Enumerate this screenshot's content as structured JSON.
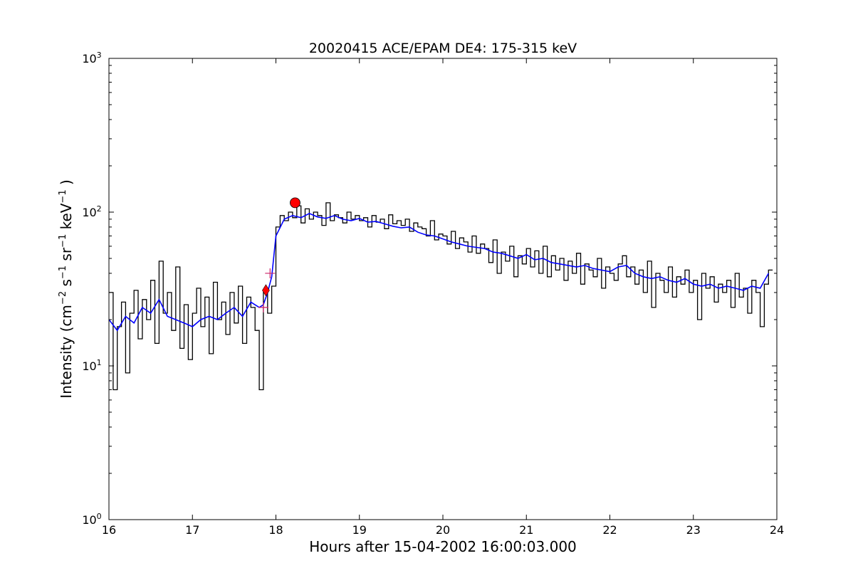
{
  "chart_data": {
    "type": "line",
    "title": "20020415 ACE/EPAM DE4: 175-315 keV",
    "xlabel": "Hours after 15-04-2002 16:00:03.000",
    "ylabel": {
      "prefix": "Intensity (cm",
      "sup1": "−2",
      "s": " s",
      "sup2": "−1",
      "sr": " sr",
      "sup3": "−1",
      "kev": " keV",
      "sup4": "−1",
      "suffix": " )"
    },
    "yscale": "log",
    "xlim": [
      16,
      24
    ],
    "ylim": [
      1,
      1000
    ],
    "x_ticks": [
      {
        "value": 16,
        "label": "16"
      },
      {
        "value": 17,
        "label": "17"
      },
      {
        "value": 18,
        "label": "18"
      },
      {
        "value": 19,
        "label": "19"
      },
      {
        "value": 20,
        "label": "20"
      },
      {
        "value": 21,
        "label": "21"
      },
      {
        "value": 22,
        "label": "22"
      },
      {
        "value": 23,
        "label": "23"
      },
      {
        "value": 24,
        "label": "24"
      }
    ],
    "y_ticks": [
      {
        "value": 1,
        "base": "10",
        "exp": "0"
      },
      {
        "value": 10,
        "base": "10",
        "exp": "1"
      },
      {
        "value": 100,
        "base": "10",
        "exp": "2"
      },
      {
        "value": 1000,
        "base": "10",
        "exp": "3"
      }
    ],
    "grid": false,
    "series": [
      {
        "style": "steps",
        "color": "#000000",
        "x": [
          16.0,
          16.05,
          16.1,
          16.15,
          16.2,
          16.25,
          16.3,
          16.35,
          16.4,
          16.45,
          16.5,
          16.55,
          16.6,
          16.65,
          16.7,
          16.75,
          16.8,
          16.85,
          16.9,
          16.95,
          17.0,
          17.05,
          17.1,
          17.15,
          17.2,
          17.25,
          17.3,
          17.35,
          17.4,
          17.45,
          17.5,
          17.55,
          17.6,
          17.65,
          17.7,
          17.75,
          17.8,
          17.85,
          17.9,
          17.95,
          18.0,
          18.05,
          18.1,
          18.15,
          18.2,
          18.25,
          18.3,
          18.35,
          18.4,
          18.45,
          18.5,
          18.55,
          18.6,
          18.65,
          18.7,
          18.75,
          18.8,
          18.85,
          18.9,
          18.95,
          19.0,
          19.05,
          19.1,
          19.15,
          19.2,
          19.25,
          19.3,
          19.35,
          19.4,
          19.45,
          19.5,
          19.55,
          19.6,
          19.65,
          19.7,
          19.75,
          19.8,
          19.85,
          19.9,
          19.95,
          20.0,
          20.05,
          20.1,
          20.15,
          20.2,
          20.25,
          20.3,
          20.35,
          20.4,
          20.45,
          20.5,
          20.55,
          20.6,
          20.65,
          20.7,
          20.75,
          20.8,
          20.85,
          20.9,
          20.95,
          21.0,
          21.05,
          21.1,
          21.15,
          21.2,
          21.25,
          21.3,
          21.35,
          21.4,
          21.45,
          21.5,
          21.55,
          21.6,
          21.65,
          21.7,
          21.75,
          21.8,
          21.85,
          21.9,
          21.95,
          22.0,
          22.05,
          22.1,
          22.15,
          22.2,
          22.25,
          22.3,
          22.35,
          22.4,
          22.45,
          22.5,
          22.55,
          22.6,
          22.65,
          22.7,
          22.75,
          22.8,
          22.85,
          22.9,
          22.95,
          23.0,
          23.05,
          23.1,
          23.15,
          23.2,
          23.25,
          23.3,
          23.35,
          23.4,
          23.45,
          23.5,
          23.55,
          23.6,
          23.65,
          23.7,
          23.75,
          23.8,
          23.85,
          23.9
        ],
        "values": [
          30,
          7,
          18,
          26,
          9,
          22,
          31,
          15,
          27,
          20,
          36,
          14,
          48,
          22,
          30,
          17,
          44,
          13,
          25,
          11,
          22,
          32,
          18,
          28,
          12,
          35,
          20,
          26,
          16,
          30,
          19,
          33,
          14,
          28,
          24,
          17,
          7,
          30,
          22,
          33,
          80,
          95,
          88,
          100,
          92,
          110,
          85,
          105,
          90,
          100,
          95,
          82,
          115,
          88,
          96,
          92,
          85,
          100,
          90,
          95,
          88,
          92,
          80,
          95,
          86,
          90,
          78,
          96,
          84,
          88,
          82,
          90,
          75,
          85,
          80,
          78,
          70,
          88,
          66,
          72,
          70,
          62,
          75,
          58,
          68,
          64,
          55,
          70,
          54,
          62,
          58,
          47,
          66,
          40,
          55,
          48,
          60,
          38,
          52,
          46,
          58,
          44,
          56,
          40,
          60,
          38,
          52,
          42,
          50,
          36,
          48,
          40,
          54,
          34,
          46,
          42,
          38,
          50,
          32,
          44,
          40,
          36,
          46,
          52,
          38,
          44,
          34,
          42,
          30,
          48,
          24,
          40,
          36,
          30,
          44,
          28,
          38,
          34,
          42,
          30,
          36,
          20,
          40,
          32,
          38,
          26,
          34,
          30,
          36,
          24,
          40,
          28,
          32,
          22,
          36,
          30,
          18,
          34,
          42
        ]
      },
      {
        "style": "line",
        "color": "#0000ff",
        "x": [
          16.0,
          16.1,
          16.2,
          16.3,
          16.4,
          16.5,
          16.6,
          16.7,
          16.8,
          16.9,
          17.0,
          17.1,
          17.2,
          17.3,
          17.4,
          17.5,
          17.6,
          17.7,
          17.8,
          17.85,
          17.9,
          17.95,
          18.0,
          18.1,
          18.2,
          18.3,
          18.4,
          18.5,
          18.6,
          18.7,
          18.8,
          18.9,
          19.0,
          19.1,
          19.2,
          19.3,
          19.4,
          19.5,
          19.6,
          19.7,
          19.8,
          19.9,
          20.0,
          20.1,
          20.2,
          20.3,
          20.4,
          20.5,
          20.6,
          20.7,
          20.8,
          20.9,
          21.0,
          21.1,
          21.2,
          21.3,
          21.4,
          21.5,
          21.6,
          21.7,
          21.8,
          21.9,
          22.0,
          22.1,
          22.2,
          22.3,
          22.4,
          22.5,
          22.6,
          22.7,
          22.8,
          22.9,
          23.0,
          23.1,
          23.2,
          23.3,
          23.4,
          23.5,
          23.6,
          23.7,
          23.8,
          23.9
        ],
        "values": [
          20,
          17,
          21,
          19,
          24,
          22,
          27,
          21,
          20,
          19,
          18,
          20,
          21,
          20,
          22,
          24,
          21,
          26,
          24,
          25,
          30,
          38,
          70,
          90,
          95,
          92,
          98,
          93,
          91,
          95,
          90,
          88,
          91,
          86,
          87,
          84,
          81,
          79,
          80,
          74,
          71,
          70,
          67,
          64,
          62,
          60,
          59,
          58,
          55,
          54,
          52,
          50,
          53,
          49,
          50,
          47,
          46,
          45,
          44,
          45,
          43,
          42,
          41,
          44,
          45,
          40,
          38,
          37,
          38,
          36,
          35,
          37,
          34,
          33,
          34,
          32,
          33,
          32,
          31,
          33,
          32,
          40
        ]
      }
    ],
    "markers": [
      {
        "shape": "cross",
        "x": 17.93,
        "y": 40,
        "color": "#cc2266"
      },
      {
        "shape": "cross",
        "x": 17.85,
        "y": 24,
        "color": "#cc2266"
      },
      {
        "shape": "diamond",
        "x": 17.88,
        "y": 31,
        "color": "#ff0000"
      },
      {
        "shape": "circle",
        "x": 18.23,
        "y": 115,
        "color": "#ff0000"
      }
    ]
  }
}
